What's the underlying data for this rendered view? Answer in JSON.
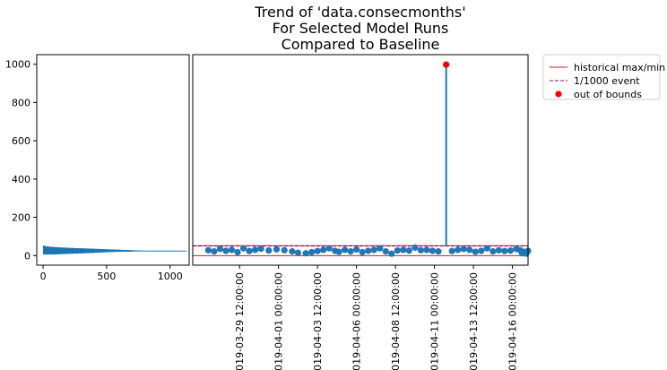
{
  "chart_data": [
    {
      "type": "bar",
      "orientation": "horizontal",
      "panel": "histogram",
      "x_ticks": [
        0,
        500,
        1000
      ],
      "y_ticks": [
        0,
        200,
        400,
        600,
        800,
        1000
      ],
      "xlim": [
        -50,
        1150
      ],
      "ylim": [
        -50,
        1050
      ],
      "color": "#1f77b4",
      "bars": [
        {
          "y": 8,
          "value": 90
        },
        {
          "y": 9,
          "value": 130
        },
        {
          "y": 10,
          "value": 160
        },
        {
          "y": 11,
          "value": 200
        },
        {
          "y": 12,
          "value": 240
        },
        {
          "y": 13,
          "value": 280
        },
        {
          "y": 14,
          "value": 320
        },
        {
          "y": 15,
          "value": 360
        },
        {
          "y": 16,
          "value": 400
        },
        {
          "y": 17,
          "value": 430
        },
        {
          "y": 18,
          "value": 460
        },
        {
          "y": 19,
          "value": 490
        },
        {
          "y": 20,
          "value": 520
        },
        {
          "y": 21,
          "value": 560
        },
        {
          "y": 22,
          "value": 620
        },
        {
          "y": 23,
          "value": 700
        },
        {
          "y": 24,
          "value": 1130
        },
        {
          "y": 25,
          "value": 760
        },
        {
          "y": 26,
          "value": 720
        },
        {
          "y": 27,
          "value": 680
        },
        {
          "y": 28,
          "value": 640
        },
        {
          "y": 29,
          "value": 600
        },
        {
          "y": 30,
          "value": 560
        },
        {
          "y": 31,
          "value": 520
        },
        {
          "y": 32,
          "value": 480
        },
        {
          "y": 33,
          "value": 440
        },
        {
          "y": 34,
          "value": 400
        },
        {
          "y": 35,
          "value": 360
        },
        {
          "y": 36,
          "value": 320
        },
        {
          "y": 37,
          "value": 280
        },
        {
          "y": 38,
          "value": 240
        },
        {
          "y": 39,
          "value": 200
        },
        {
          "y": 40,
          "value": 170
        },
        {
          "y": 41,
          "value": 140
        },
        {
          "y": 42,
          "value": 110
        },
        {
          "y": 43,
          "value": 90
        },
        {
          "y": 44,
          "value": 70
        },
        {
          "y": 45,
          "value": 50
        },
        {
          "y": 46,
          "value": 40
        },
        {
          "y": 47,
          "value": 30
        },
        {
          "y": 48,
          "value": 20
        },
        {
          "y": 49,
          "value": 15
        },
        {
          "y": 50,
          "value": 10
        },
        {
          "y": 51,
          "value": 6
        }
      ]
    },
    {
      "type": "scatter",
      "panel": "trend",
      "title": "Trend of 'data.consecmonths'\nFor Selected Model Runs\nCompared to Baseline",
      "x_type": "date",
      "xlim": [
        "2019-03-26 12:00:00",
        "2019-04-17 00:00:00"
      ],
      "ylim": [
        -50,
        1050
      ],
      "x_ticks": [
        "2019-03-29 12:00:00",
        "2019-04-01 00:00:00",
        "2019-04-03 12:00:00",
        "2019-04-06 00:00:00",
        "2019-04-08 12:00:00",
        "2019-04-11 00:00:00",
        "2019-04-13 12:00:00",
        "2019-04-16 00:00:00"
      ],
      "historical_max": 52,
      "historical_min": 0,
      "event_1_in_1000": 50,
      "colors": {
        "points": "#1f77b4",
        "historical": "#e8141c",
        "event": "#8b008b",
        "out_of_bounds": "#ff0000"
      },
      "points": [
        {
          "x": "2019-03-27 12:00:00",
          "y": 28
        },
        {
          "x": "2019-03-27 21:00:00",
          "y": 22
        },
        {
          "x": "2019-03-28 06:00:00",
          "y": 35
        },
        {
          "x": "2019-03-28 15:00:00",
          "y": 25
        },
        {
          "x": "2019-03-29 00:00:00",
          "y": 30
        },
        {
          "x": "2019-03-29 09:00:00",
          "y": 18
        },
        {
          "x": "2019-03-29 18:00:00",
          "y": 38
        },
        {
          "x": "2019-03-30 03:00:00",
          "y": 24
        },
        {
          "x": "2019-03-30 12:00:00",
          "y": 30
        },
        {
          "x": "2019-03-30 21:00:00",
          "y": 36
        },
        {
          "x": "2019-03-31 09:00:00",
          "y": 27
        },
        {
          "x": "2019-03-31 21:00:00",
          "y": 33
        },
        {
          "x": "2019-04-01 09:00:00",
          "y": 28
        },
        {
          "x": "2019-04-01 21:00:00",
          "y": 22
        },
        {
          "x": "2019-04-02 06:00:00",
          "y": 15
        },
        {
          "x": "2019-04-02 18:00:00",
          "y": 12
        },
        {
          "x": "2019-04-03 03:00:00",
          "y": 18
        },
        {
          "x": "2019-04-03 12:00:00",
          "y": 24
        },
        {
          "x": "2019-04-03 21:00:00",
          "y": 30
        },
        {
          "x": "2019-04-04 06:00:00",
          "y": 38
        },
        {
          "x": "2019-04-04 15:00:00",
          "y": 25
        },
        {
          "x": "2019-04-04 21:00:00",
          "y": 20
        },
        {
          "x": "2019-04-05 06:00:00",
          "y": 30
        },
        {
          "x": "2019-04-05 15:00:00",
          "y": 22
        },
        {
          "x": "2019-04-06 00:00:00",
          "y": 32
        },
        {
          "x": "2019-04-06 09:00:00",
          "y": 18
        },
        {
          "x": "2019-04-06 18:00:00",
          "y": 25
        },
        {
          "x": "2019-04-07 03:00:00",
          "y": 30
        },
        {
          "x": "2019-04-07 12:00:00",
          "y": 38
        },
        {
          "x": "2019-04-07 21:00:00",
          "y": 22
        },
        {
          "x": "2019-04-08 06:00:00",
          "y": 10
        },
        {
          "x": "2019-04-08 15:00:00",
          "y": 27
        },
        {
          "x": "2019-04-09 00:00:00",
          "y": 30
        },
        {
          "x": "2019-04-09 09:00:00",
          "y": 26
        },
        {
          "x": "2019-04-09 18:00:00",
          "y": 42
        },
        {
          "x": "2019-04-10 03:00:00",
          "y": 28
        },
        {
          "x": "2019-04-10 12:00:00",
          "y": 30
        },
        {
          "x": "2019-04-10 21:00:00",
          "y": 25
        },
        {
          "x": "2019-04-11 06:00:00",
          "y": 22
        },
        {
          "x": "2019-04-11 18:00:00",
          "y": 998
        },
        {
          "x": "2019-04-12 03:00:00",
          "y": 24
        },
        {
          "x": "2019-04-12 12:00:00",
          "y": 30
        },
        {
          "x": "2019-04-12 21:00:00",
          "y": 35
        },
        {
          "x": "2019-04-13 06:00:00",
          "y": 30
        },
        {
          "x": "2019-04-13 15:00:00",
          "y": 20
        },
        {
          "x": "2019-04-14 00:00:00",
          "y": 25
        },
        {
          "x": "2019-04-14 09:00:00",
          "y": 38
        },
        {
          "x": "2019-04-14 18:00:00",
          "y": 22
        },
        {
          "x": "2019-04-15 03:00:00",
          "y": 28
        },
        {
          "x": "2019-04-15 12:00:00",
          "y": 24
        },
        {
          "x": "2019-04-15 21:00:00",
          "y": 26
        },
        {
          "x": "2019-04-16 06:00:00",
          "y": 35
        },
        {
          "x": "2019-04-16 12:00:00",
          "y": 28
        },
        {
          "x": "2019-04-16 15:00:00",
          "y": 12
        },
        {
          "x": "2019-04-16 18:00:00",
          "y": 20
        },
        {
          "x": "2019-04-16 21:00:00",
          "y": 10
        },
        {
          "x": "2019-04-17 00:00:00",
          "y": 25
        }
      ],
      "out_of_bounds_points": [
        {
          "x": "2019-04-11 18:00:00",
          "y": 998
        }
      ],
      "legend": {
        "placement": "outside-right",
        "entries": [
          {
            "label": "historical max/min",
            "kind": "line"
          },
          {
            "label": "1/1000 event",
            "kind": "dashed-line"
          },
          {
            "label": "out of bounds",
            "kind": "marker"
          }
        ]
      }
    }
  ]
}
